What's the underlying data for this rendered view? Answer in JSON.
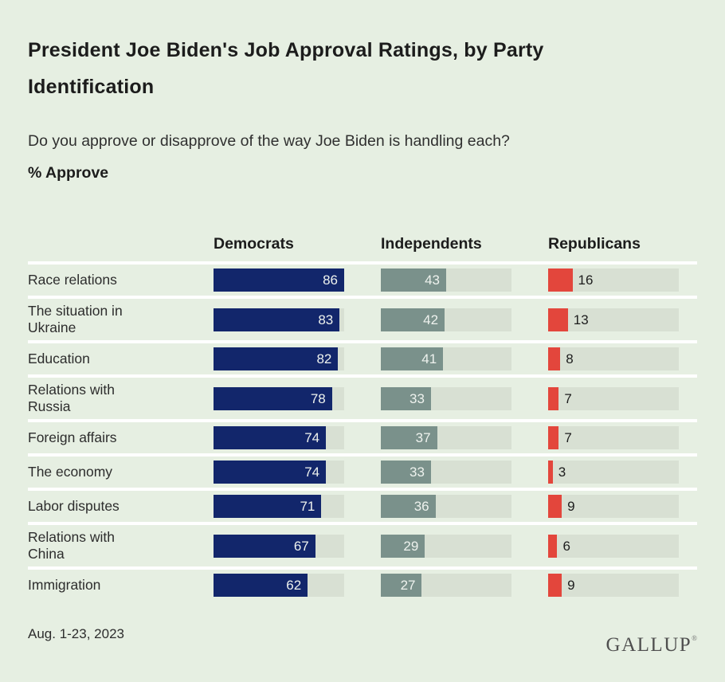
{
  "header": {
    "title": "President Joe Biden's Job Approval Ratings, by Party Identification",
    "question": "Do you approve or disapprove of the way Joe Biden is handling each?",
    "metric": "% Approve"
  },
  "chart_data": {
    "type": "bar",
    "orientation": "horizontal",
    "title": "President Joe Biden's Job Approval Ratings, by Party Identification",
    "subtitle": "Do you approve or disapprove of the way Joe Biden is handling each?",
    "value_label": "% Approve",
    "categories": [
      "Race relations",
      "The situation in Ukraine",
      "Education",
      "Relations with Russia",
      "Foreign affairs",
      "The economy",
      "Labor disputes",
      "Relations with China",
      "Immigration"
    ],
    "series": [
      {
        "name": "Democrats",
        "color": "#12266b",
        "value_label_position": "inside",
        "values": [
          86,
          83,
          82,
          78,
          74,
          74,
          71,
          67,
          62
        ]
      },
      {
        "name": "Independents",
        "color": "#7a918b",
        "value_label_position": "inside",
        "values": [
          43,
          42,
          41,
          33,
          37,
          33,
          36,
          29,
          27
        ]
      },
      {
        "name": "Republicans",
        "color": "#e3463c",
        "value_label_position": "outside",
        "values": [
          16,
          13,
          8,
          7,
          7,
          3,
          9,
          6,
          9
        ]
      }
    ],
    "scale_max": 86,
    "track_color": "#d8e0d3",
    "grid": "white-row-separators",
    "legend_position": "column-headers-top"
  },
  "footer": {
    "date": "Aug. 1-23, 2023",
    "brand": "GALLUP",
    "brand_mark": "®"
  },
  "colors": {
    "background": "#e6efe2",
    "separator": "#ffffff",
    "democrat_bar": "#12266b",
    "independent_bar": "#7a918b",
    "republican_bar": "#e3463c",
    "bar_track": "#d8e0d3",
    "text_primary": "#1c1c1c",
    "text_secondary": "#2d2d2d"
  }
}
